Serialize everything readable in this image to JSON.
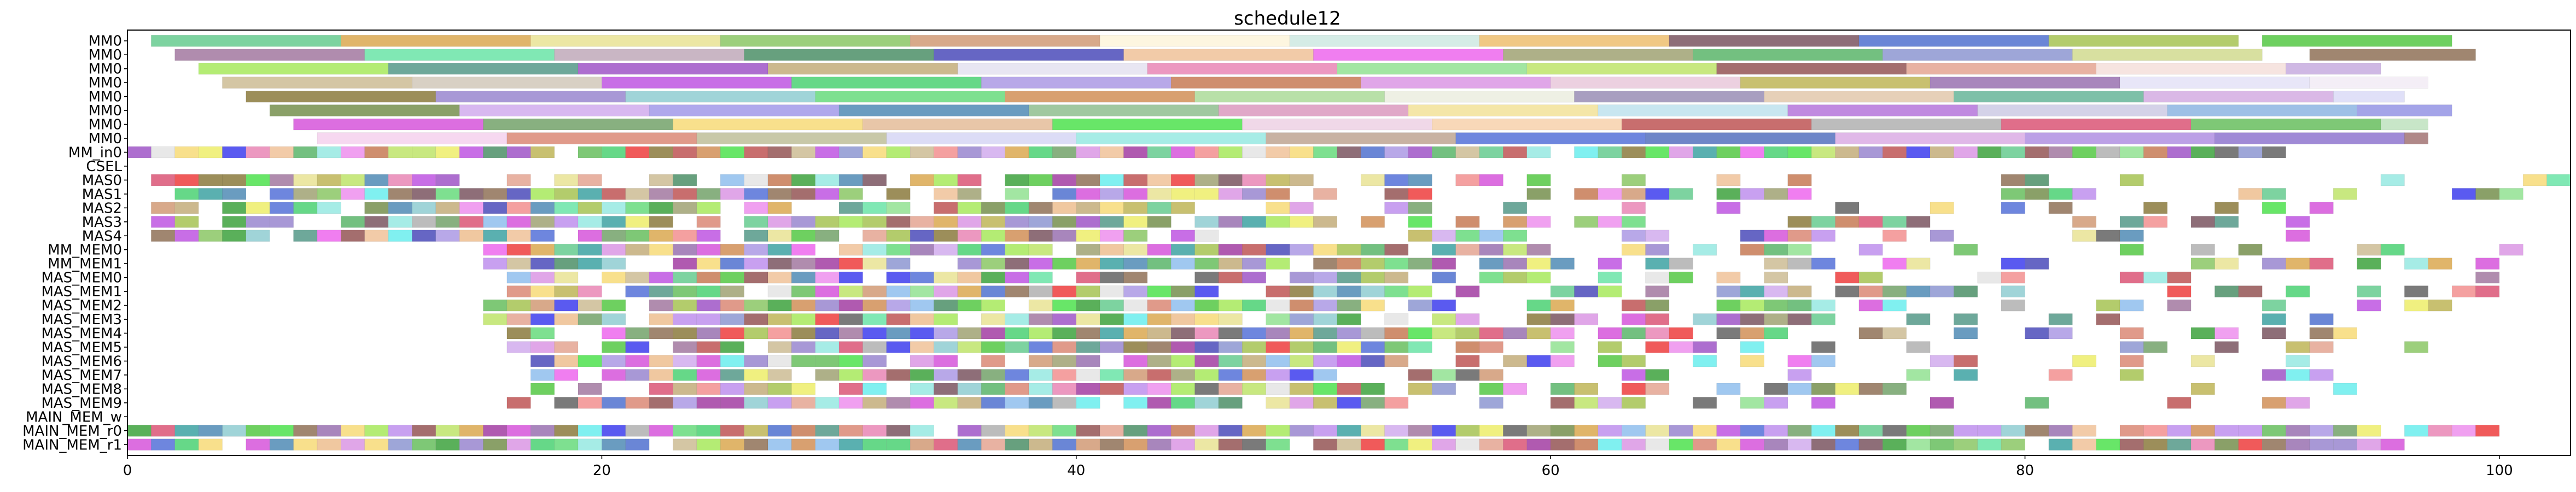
{
  "chart_data": {
    "type": "gantt",
    "title": "schedule12",
    "xlabel": "",
    "ylabel": "",
    "xlim": [
      0,
      103
    ],
    "xticks": [
      0,
      20,
      40,
      60,
      80,
      100
    ],
    "grid": false,
    "legend": "none",
    "rows": [
      "MM0",
      "MM0",
      "MM0",
      "MM0",
      "MM0",
      "MM0",
      "MM0",
      "MM0",
      "MM_in0",
      "CSEL",
      "MAS0",
      "MAS1",
      "MAS2",
      "MAS3",
      "MAS4",
      "MM_MEM0",
      "MM_MEM1",
      "MAS_MEM0",
      "MAS_MEM1",
      "MAS_MEM2",
      "MAS_MEM3",
      "MAS_MEM4",
      "MAS_MEM5",
      "MAS_MEM6",
      "MAS_MEM7",
      "MAS_MEM8",
      "MAS_MEM9",
      "MAIN_MEM_w",
      "MAIN_MEM_r0",
      "MAIN_MEM_r1"
    ],
    "mm_lanes": [
      [
        [
          1,
          9,
          "#7dd3a0"
        ],
        [
          9,
          17,
          "#e0b56a"
        ],
        [
          17,
          25,
          "#ece7a4"
        ],
        [
          25,
          33,
          "#9ccf7c"
        ],
        [
          33,
          41,
          "#d8a98a"
        ],
        [
          41,
          49,
          "#fdf6e0"
        ],
        [
          49,
          57,
          "#d5ece6"
        ],
        [
          57,
          65,
          "#f0c884"
        ],
        [
          65,
          73,
          "#8e6e78"
        ],
        [
          73,
          81,
          "#6a86d6"
        ],
        [
          81,
          89,
          "#b3cc6c"
        ],
        [
          90,
          98,
          "#6ed060"
        ]
      ],
      [
        [
          2,
          10,
          "#b08cae"
        ],
        [
          10,
          18,
          "#80e8b4"
        ],
        [
          18,
          26,
          "#c9b6c4"
        ],
        [
          26,
          34,
          "#67a07e"
        ],
        [
          34,
          42,
          "#6666c4"
        ],
        [
          42,
          50,
          "#f2cba8"
        ],
        [
          50,
          58,
          "#f07ef0"
        ],
        [
          58,
          66,
          "#aeb088"
        ],
        [
          66,
          74,
          "#73c080"
        ],
        [
          74,
          82,
          "#9ea6d8"
        ],
        [
          82,
          90,
          "#d8e0a0"
        ],
        [
          92,
          99,
          "#a08670"
        ]
      ],
      [
        [
          3,
          11,
          "#b4ec74"
        ],
        [
          11,
          19,
          "#6ea89a"
        ],
        [
          19,
          27,
          "#ad6ecf"
        ],
        [
          27,
          35,
          "#ccb98e"
        ],
        [
          35,
          43,
          "#e8e6f2"
        ],
        [
          43,
          51,
          "#ec98c0"
        ],
        [
          51,
          59,
          "#a2e6a2"
        ],
        [
          59,
          67,
          "#c8e880"
        ],
        [
          67,
          75,
          "#a46e6e"
        ],
        [
          75,
          83,
          "#e8b2a2"
        ],
        [
          83,
          91,
          "#f6e4e0"
        ],
        [
          91,
          95,
          "#cfb8e4"
        ]
      ],
      [
        [
          4,
          12,
          "#d4c6a4"
        ],
        [
          12,
          20,
          "#d8d0c4"
        ],
        [
          20,
          28,
          "#c86ee6"
        ],
        [
          28,
          36,
          "#66d888"
        ],
        [
          36,
          44,
          "#b8a8e8"
        ],
        [
          44,
          52,
          "#cf8e6e"
        ],
        [
          52,
          60,
          "#e0a6e8"
        ],
        [
          60,
          68,
          "#ecd0e0"
        ],
        [
          68,
          76,
          "#c8c070"
        ],
        [
          76,
          84,
          "#a886bc"
        ],
        [
          84,
          92,
          "#e8e6f8"
        ],
        [
          92,
          97,
          "#f4eef6"
        ]
      ],
      [
        [
          5,
          13,
          "#9c8e5a"
        ],
        [
          13,
          21,
          "#a898d6"
        ],
        [
          21,
          29,
          "#a0d4d8"
        ],
        [
          29,
          37,
          "#7ee090"
        ],
        [
          37,
          45,
          "#d8a070"
        ],
        [
          45,
          53,
          "#b8e0a8"
        ],
        [
          53,
          61,
          "#eef0e4"
        ],
        [
          61,
          69,
          "#a89ec0"
        ],
        [
          69,
          77,
          "#e6d0b8"
        ],
        [
          77,
          85,
          "#7ec0a8"
        ],
        [
          85,
          93,
          "#dab8e6"
        ],
        [
          93,
          96,
          "#e0e0f8"
        ]
      ],
      [
        [
          6,
          14,
          "#8aa068"
        ],
        [
          14,
          22,
          "#d8b8f0"
        ],
        [
          22,
          30,
          "#b0a8ec"
        ],
        [
          30,
          38,
          "#6a9cc0"
        ],
        [
          38,
          46,
          "#a0c8a0"
        ],
        [
          46,
          54,
          "#e0a8c8"
        ],
        [
          54,
          62,
          "#f4e6a8"
        ],
        [
          62,
          70,
          "#c8e6f0"
        ],
        [
          70,
          78,
          "#c08ae0"
        ],
        [
          78,
          86,
          "#d4d2e8"
        ],
        [
          86,
          94,
          "#9ec0e6"
        ],
        [
          94,
          98,
          "#a4a4e8"
        ]
      ],
      [
        [
          7,
          15,
          "#dc6ee0"
        ],
        [
          15,
          23,
          "#88b080"
        ],
        [
          23,
          31,
          "#f8e08c"
        ],
        [
          31,
          39,
          "#e8c6a8"
        ],
        [
          39,
          47,
          "#68e668"
        ],
        [
          47,
          55,
          "#f0d8e8"
        ],
        [
          55,
          63,
          "#f8d8b8"
        ],
        [
          63,
          71,
          "#c86e6e"
        ],
        [
          71,
          79,
          "#bcbcbc"
        ],
        [
          79,
          87,
          "#e06e8a"
        ],
        [
          87,
          95,
          "#7ec876"
        ],
        [
          95,
          97,
          "#c8e6c8"
        ]
      ],
      [
        [
          8,
          16,
          "#f6d8f0"
        ],
        [
          16,
          24,
          "#e09a8a"
        ],
        [
          24,
          32,
          "#c8c8a8"
        ],
        [
          32,
          40,
          "#dcdcf6"
        ],
        [
          40,
          48,
          "#a6ece6"
        ],
        [
          48,
          56,
          "#c8b2a2"
        ],
        [
          56,
          64,
          "#6e86de"
        ],
        [
          64,
          72,
          "#6e86c8"
        ],
        [
          72,
          80,
          "#e0b8e8"
        ],
        [
          80,
          88,
          "#bca0e6"
        ],
        [
          88,
          96,
          "#a08ad6"
        ],
        [
          96,
          97,
          "#b08888"
        ]
      ]
    ],
    "palette": [
      "#7dd3a0",
      "#e0b56a",
      "#ece7a4",
      "#9ccf7c",
      "#d8a98a",
      "#8e6e78",
      "#6a86d6",
      "#b3cc6c",
      "#6ed060",
      "#b08cae",
      "#80e8b4",
      "#67a07e",
      "#6666c4",
      "#f2cba8",
      "#f07ef0",
      "#aeb088",
      "#73c080",
      "#9ea6d8",
      "#a08670",
      "#b4ec74",
      "#6ea89a",
      "#ad6ecf",
      "#ccb98e",
      "#ec98c0",
      "#a2e6a2",
      "#c8e880",
      "#a46e6e",
      "#e8b2a2",
      "#d4c6a4",
      "#c86ee6",
      "#66d888",
      "#b8a8e8",
      "#cf8e6e",
      "#e0a6e8",
      "#c8c070",
      "#a886bc",
      "#9c8e5a",
      "#a898d6",
      "#a0d4d8",
      "#7ee090",
      "#d8a070",
      "#8aa068",
      "#d8b8f0",
      "#6a9cc0",
      "#dc6ee0",
      "#88b080",
      "#f8e08c",
      "#68e668",
      "#c86e6e",
      "#bcbcbc",
      "#e06e8a",
      "#7ec876",
      "#e09a8a",
      "#6e86de",
      "#a6ece6",
      "#f4a0a0",
      "#f05a5a",
      "#5a5af0",
      "#f0a0f0",
      "#80f0f0",
      "#f0f080",
      "#5ab05a",
      "#b05ab0",
      "#5ab0b0",
      "#f0c8a0",
      "#a0c8f0",
      "#c8a0f0",
      "#7a7a7a",
      "#e8e8e8"
    ],
    "dense_rows": {
      "MM_in0": [
        0,
        91
      ],
      "CSEL": [
        0,
        0
      ],
      "MAS0": [
        1,
        103
      ],
      "MAS1": [
        1,
        101
      ],
      "MAS2": [
        1,
        99
      ],
      "MAS3": [
        1,
        97
      ],
      "MAS4": [
        1,
        99
      ],
      "MM_MEM0": [
        15,
        101
      ],
      "MM_MEM1": [
        15,
        101
      ],
      "MAS_MEM0": [
        16,
        100
      ],
      "MAS_MEM1": [
        16,
        102
      ],
      "MAS_MEM2": [
        15,
        98
      ],
      "MAS_MEM3": [
        15,
        96
      ],
      "MAS_MEM4": [
        16,
        96
      ],
      "MAS_MEM5": [
        16,
        98
      ],
      "MAS_MEM6": [
        17,
        95
      ],
      "MAS_MEM7": [
        17,
        93
      ],
      "MAS_MEM8": [
        17,
        96
      ],
      "MAS_MEM9": [
        16,
        93
      ],
      "MAIN_MEM_w": [
        0,
        0
      ],
      "MAIN_MEM_r0": [
        0,
        100
      ],
      "MAIN_MEM_r1": [
        0,
        96
      ]
    }
  }
}
